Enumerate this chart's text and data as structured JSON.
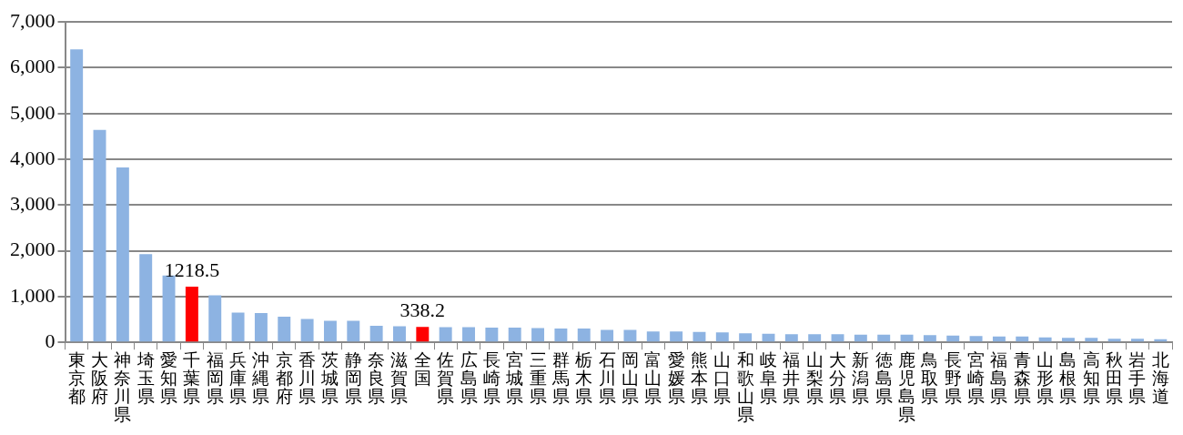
{
  "chart_data": {
    "type": "bar",
    "categories": [
      "東京都",
      "大阪府",
      "神奈川県",
      "埼玉県",
      "愛知県",
      "千葉県",
      "福岡県",
      "兵庫県",
      "沖縄県",
      "京都府",
      "香川県",
      "茨城県",
      "静岡県",
      "奈良県",
      "滋賀県",
      "全国",
      "佐賀県",
      "広島県",
      "長崎県",
      "宮城県",
      "三重県",
      "群馬県",
      "栃木県",
      "石川県",
      "岡山県",
      "富山県",
      "愛媛県",
      "熊本県",
      "山口県",
      "和歌山県",
      "岐阜県",
      "福井県",
      "山梨県",
      "大分県",
      "新潟県",
      "徳島県",
      "鹿児島県",
      "鳥取県",
      "長野県",
      "宮崎県",
      "福島県",
      "青森県",
      "山形県",
      "島根県",
      "高知県",
      "秋田県",
      "岩手県",
      "北海道"
    ],
    "values": [
      6400,
      4640,
      3820,
      1930,
      1460,
      1218.5,
      1030,
      650,
      640,
      560,
      510,
      470,
      470,
      360,
      350,
      338.2,
      330,
      330,
      320,
      320,
      310,
      300,
      300,
      270,
      270,
      240,
      240,
      230,
      220,
      200,
      190,
      180,
      180,
      180,
      170,
      170,
      170,
      160,
      150,
      140,
      130,
      130,
      110,
      100,
      100,
      80,
      80,
      70
    ],
    "colors": [
      "#8db3e2",
      "#8db3e2",
      "#8db3e2",
      "#8db3e2",
      "#8db3e2",
      "#ff0000",
      "#8db3e2",
      "#8db3e2",
      "#8db3e2",
      "#8db3e2",
      "#8db3e2",
      "#8db3e2",
      "#8db3e2",
      "#8db3e2",
      "#8db3e2",
      "#ff0000",
      "#8db3e2",
      "#8db3e2",
      "#8db3e2",
      "#8db3e2",
      "#8db3e2",
      "#8db3e2",
      "#8db3e2",
      "#8db3e2",
      "#8db3e2",
      "#8db3e2",
      "#8db3e2",
      "#8db3e2",
      "#8db3e2",
      "#8db3e2",
      "#8db3e2",
      "#8db3e2",
      "#8db3e2",
      "#8db3e2",
      "#8db3e2",
      "#8db3e2",
      "#8db3e2",
      "#8db3e2",
      "#8db3e2",
      "#8db3e2",
      "#8db3e2",
      "#8db3e2",
      "#8db3e2",
      "#8db3e2",
      "#8db3e2",
      "#8db3e2",
      "#8db3e2",
      "#8db3e2"
    ],
    "value_labels": [
      null,
      null,
      null,
      null,
      null,
      "1218.5",
      null,
      null,
      null,
      null,
      null,
      null,
      null,
      null,
      null,
      "338.2",
      null,
      null,
      null,
      null,
      null,
      null,
      null,
      null,
      null,
      null,
      null,
      null,
      null,
      null,
      null,
      null,
      null,
      null,
      null,
      null,
      null,
      null,
      null,
      null,
      null,
      null,
      null,
      null,
      null,
      null,
      null,
      null
    ],
    "ylim": [
      0,
      7000
    ],
    "yticks": [
      0,
      {
        "value": 1000,
        "label": "1,000"
      },
      {
        "value": 2000,
        "label": "2,000"
      },
      {
        "value": 3000,
        "label": "3,000"
      },
      {
        "value": 4000,
        "label": "4,000"
      },
      {
        "value": 5000,
        "label": "5,000"
      },
      {
        "value": 6000,
        "label": "6,000"
      },
      {
        "value": 7000,
        "label": "7,000"
      }
    ],
    "grid": "y",
    "legend": false
  }
}
